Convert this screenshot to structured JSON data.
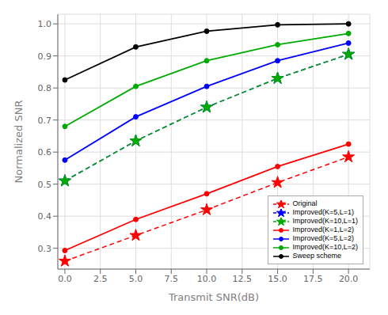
{
  "chart_data": {
    "type": "line",
    "xlabel": "Transmit SNR(dB)",
    "ylabel": "Normalized SNR",
    "x": [
      0,
      5,
      10,
      15,
      20
    ],
    "series": [
      {
        "name": "Original",
        "color": "#ff0000",
        "values": [
          0.26,
          0.34,
          0.42,
          0.505,
          0.585
        ],
        "line_style": "dashed",
        "marker": "star"
      },
      {
        "name": "Improved(K=5,L=1)",
        "color": "#0000ff",
        "values": [
          0.51,
          0.635,
          0.74,
          0.83,
          0.905
        ],
        "line_style": "dashed",
        "marker": "star"
      },
      {
        "name": "Improved(K=10,L=1)",
        "color": "#00aa00",
        "values": [
          0.51,
          0.635,
          0.74,
          0.83,
          0.905
        ],
        "line_style": "dashed",
        "marker": "star"
      },
      {
        "name": "Improved(K=1,L=2)",
        "color": "#ff0000",
        "values": [
          0.293,
          0.39,
          0.47,
          0.555,
          0.625
        ],
        "line_style": "solid",
        "marker": "circle"
      },
      {
        "name": "Improved(K=5,L=2)",
        "color": "#0000ff",
        "values": [
          0.575,
          0.71,
          0.805,
          0.885,
          0.94
        ],
        "line_style": "solid",
        "marker": "circle"
      },
      {
        "name": "Improved(K=10,L=2)",
        "color": "#00aa00",
        "values": [
          0.68,
          0.805,
          0.885,
          0.935,
          0.97
        ],
        "line_style": "solid",
        "marker": "circle"
      },
      {
        "name": "Sweep scheme",
        "color": "#000000",
        "values": [
          0.825,
          0.928,
          0.977,
          0.997,
          1.0
        ],
        "line_style": "solid",
        "marker": "circle"
      }
    ],
    "xlim": [
      -0.5,
      21.5
    ],
    "ylim": [
      0.235,
      1.03
    ],
    "xticks": [
      {
        "value": 0,
        "label": "0.0"
      },
      2.5,
      {
        "value": 5,
        "label": "5.0"
      },
      7.5,
      {
        "value": 10,
        "label": "10.0"
      },
      12.5,
      {
        "value": 15,
        "label": "15.0"
      },
      17.5,
      {
        "value": 20,
        "label": "20.0"
      }
    ],
    "yticks": [
      0.3,
      0.4,
      0.5,
      0.6,
      0.7,
      0.8,
      0.9,
      {
        "value": 1.0,
        "label": "1.0"
      }
    ],
    "grid": true,
    "legend": "lower right"
  }
}
